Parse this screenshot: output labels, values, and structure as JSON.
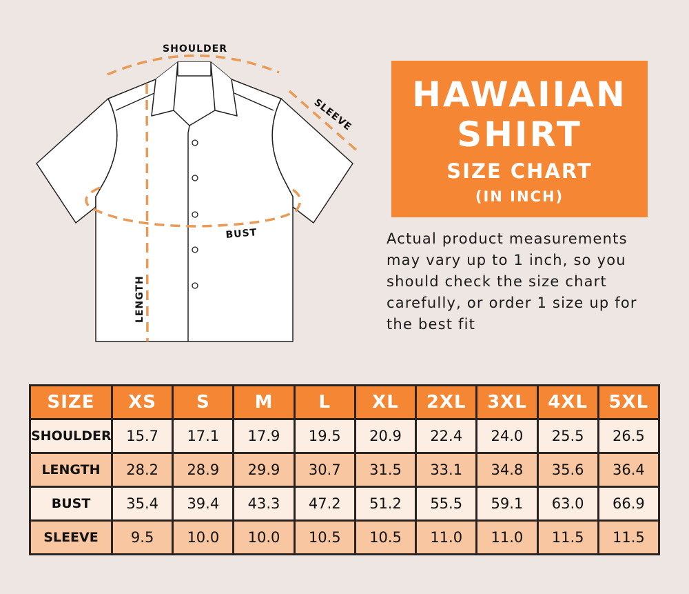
{
  "diagram": {
    "labels": {
      "shoulder": "SHOULDER",
      "sleeve": "SLEEVE",
      "bust": "BUST",
      "length": "LENGTH"
    },
    "colors": {
      "dash": "#E89A56",
      "outline": "#222222",
      "shirt": "#FFFFFF"
    }
  },
  "title": {
    "line1": "HAWAIIAN",
    "line2": "SHIRT",
    "line3": "SIZE CHART",
    "line4": "(IN INCH)",
    "background": "#F58634"
  },
  "note": "Actual product measurements may vary up to 1 inch, so you should check the size chart carefully, or order 1 size up for the best fit",
  "table": {
    "header": [
      "SIZE",
      "XS",
      "S",
      "M",
      "L",
      "XL",
      "2XL",
      "3XL",
      "4XL",
      "5XL"
    ],
    "rows": [
      {
        "label": "SHOULDER",
        "values": [
          "15.7",
          "17.1",
          "17.9",
          "19.5",
          "20.9",
          "22.4",
          "24.0",
          "25.5",
          "26.5"
        ]
      },
      {
        "label": "LENGTH",
        "values": [
          "28.2",
          "28.9",
          "29.9",
          "30.7",
          "31.5",
          "33.1",
          "34.8",
          "35.6",
          "36.4"
        ]
      },
      {
        "label": "BUST",
        "values": [
          "35.4",
          "39.4",
          "43.3",
          "47.2",
          "51.2",
          "55.5",
          "59.1",
          "63.0",
          "66.9"
        ]
      },
      {
        "label": "SLEEVE",
        "values": [
          "9.5",
          "10.0",
          "10.0",
          "10.5",
          "10.5",
          "11.0",
          "11.0",
          "11.5",
          "11.5"
        ]
      }
    ],
    "colors": {
      "header": "#F58634",
      "row_light": "#FDEEE4",
      "row_dark": "#F9C6A2",
      "border": "#2A2320"
    }
  }
}
